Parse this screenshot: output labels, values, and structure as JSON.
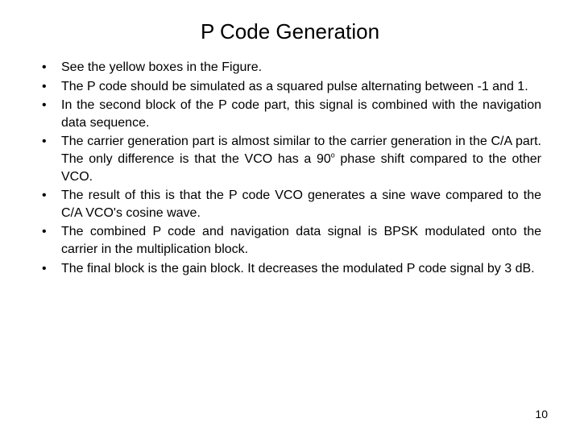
{
  "title": "P Code Generation",
  "bullets": [
    {
      "text": "See the yellow boxes in the Figure.",
      "justify": false
    },
    {
      "text": "The P code should be simulated as a squared pulse alternating between -1 and 1.",
      "justify": true
    },
    {
      "text": "In the second block of the P code part, this signal is combined with the navigation data sequence.",
      "justify": true
    },
    {
      "text_html": "The carrier generation part is almost similar to the carrier generation in the C/A part. The only difference is that the VCO has a 90<span class=\"sup\">o</span> phase shift compared to the other VCO.",
      "justify": true
    },
    {
      "text": "The result of this is that the P code VCO generates a sine wave compared to the C/A VCO's cosine wave.",
      "justify": true
    },
    {
      "text": "The combined P code and navigation data signal is BPSK modulated onto the carrier in the multiplication block.",
      "justify": true
    },
    {
      "text": "The final block is the gain block. It decreases the modulated P code signal by 3 dB.",
      "justify": true
    }
  ],
  "page_number": "10",
  "bullet_marker": "•",
  "styling": {
    "title_fontsize": 26,
    "body_fontsize": 16,
    "text_color": "#000000",
    "background_color": "#ffffff",
    "font_family": "Arial"
  }
}
